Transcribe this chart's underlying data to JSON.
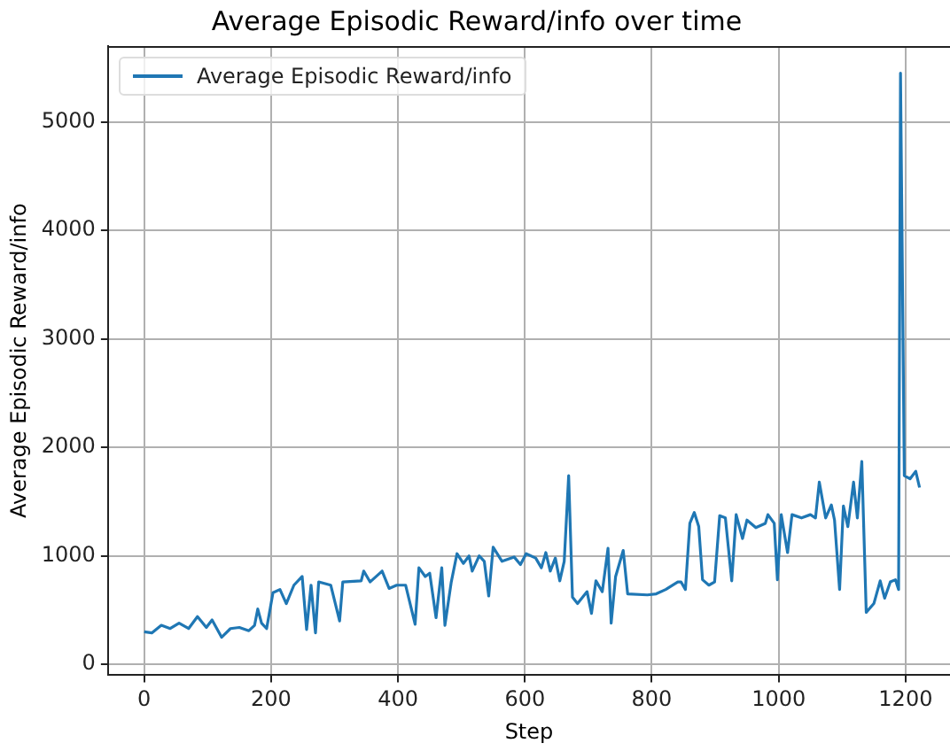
{
  "chart_data": {
    "type": "line",
    "title": "Average Episodic Reward/info over time",
    "xlabel": "Step",
    "ylabel": "Average Episodic Reward/info",
    "xlim": [
      -57,
      1270
    ],
    "ylim": [
      -100,
      5700
    ],
    "xticks": [
      0,
      200,
      400,
      600,
      800,
      1000,
      1200
    ],
    "yticks": [
      0,
      1000,
      2000,
      3000,
      4000,
      5000
    ],
    "grid": true,
    "legend": "top left",
    "marker": "none",
    "line_style": "solid",
    "series": [
      {
        "name": "Average Episodic Reward/info",
        "color": "#1f77b4",
        "x": [
          0,
          12,
          27,
          41,
          55,
          70,
          84,
          98,
          107,
          122,
          136,
          150,
          165,
          174,
          179,
          185,
          193,
          203,
          214,
          224,
          236,
          249,
          256,
          263,
          270,
          275,
          294,
          308,
          313,
          342,
          346,
          356,
          375,
          386,
          398,
          412,
          427,
          433,
          443,
          450,
          460,
          469,
          474,
          484,
          493,
          503,
          512,
          517,
          528,
          536,
          543,
          550,
          564,
          583,
          593,
          602,
          617,
          626,
          633,
          640,
          648,
          655,
          662,
          669,
          675,
          683,
          698,
          705,
          712,
          722,
          731,
          736,
          743,
          755,
          762,
          793,
          807,
          822,
          841,
          846,
          853,
          860,
          867,
          874,
          880,
          890,
          899,
          907,
          916,
          926,
          933,
          943,
          950,
          964,
          979,
          983,
          993,
          998,
          1004,
          1014,
          1021,
          1036,
          1050,
          1058,
          1064,
          1074,
          1083,
          1088,
          1096,
          1102,
          1109,
          1118,
          1124,
          1131,
          1138,
          1150,
          1160,
          1167,
          1176,
          1184,
          1189,
          1192,
          1198,
          1207,
          1216,
          1222
        ],
        "values": [
          300,
          290,
          360,
          330,
          380,
          330,
          440,
          340,
          410,
          250,
          330,
          340,
          310,
          360,
          510,
          380,
          330,
          660,
          690,
          560,
          730,
          810,
          320,
          730,
          290,
          760,
          730,
          400,
          760,
          770,
          860,
          760,
          860,
          700,
          730,
          730,
          370,
          890,
          810,
          840,
          430,
          890,
          360,
          760,
          1020,
          930,
          1000,
          860,
          1000,
          950,
          630,
          1080,
          950,
          990,
          920,
          1020,
          980,
          890,
          1030,
          860,
          980,
          770,
          950,
          1740,
          620,
          560,
          670,
          470,
          770,
          670,
          1070,
          380,
          810,
          1050,
          650,
          640,
          650,
          690,
          760,
          760,
          690,
          1300,
          1400,
          1270,
          780,
          730,
          760,
          1370,
          1350,
          770,
          1380,
          1160,
          1330,
          1260,
          1300,
          1380,
          1300,
          780,
          1380,
          1030,
          1380,
          1350,
          1380,
          1350,
          1680,
          1350,
          1470,
          1330,
          690,
          1460,
          1270,
          1680,
          1350,
          1870,
          480,
          560,
          770,
          610,
          760,
          780,
          690,
          5450,
          1740,
          1710,
          1780,
          1630
        ]
      }
    ]
  }
}
